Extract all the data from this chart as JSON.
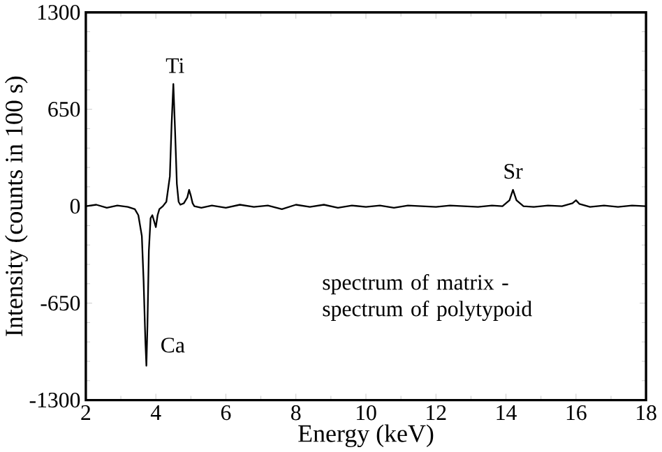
{
  "chart_data": {
    "type": "line",
    "xlabel": "Energy (keV)",
    "ylabel": "Intensity (counts in 100 s)",
    "x": [
      2.0,
      2.3,
      2.6,
      2.9,
      3.2,
      3.4,
      3.5,
      3.6,
      3.65,
      3.7,
      3.73,
      3.76,
      3.8,
      3.85,
      3.9,
      3.95,
      4.0,
      4.05,
      4.1,
      4.2,
      4.3,
      4.4,
      4.45,
      4.5,
      4.55,
      4.6,
      4.65,
      4.7,
      4.8,
      4.9,
      4.95,
      5.0,
      5.05,
      5.1,
      5.3,
      5.6,
      6.0,
      6.4,
      6.8,
      7.2,
      7.6,
      8.0,
      8.4,
      8.8,
      9.2,
      9.6,
      10.0,
      10.4,
      10.8,
      11.2,
      11.6,
      12.0,
      12.4,
      12.8,
      13.2,
      13.6,
      13.9,
      14.1,
      14.2,
      14.3,
      14.5,
      14.8,
      15.2,
      15.6,
      15.9,
      16.0,
      16.1,
      16.4,
      16.8,
      17.2,
      17.6,
      18.0
    ],
    "values": [
      0,
      10,
      -10,
      5,
      -5,
      -20,
      -60,
      -200,
      -500,
      -900,
      -1070,
      -800,
      -300,
      -80,
      -60,
      -100,
      -140,
      -60,
      -20,
      0,
      30,
      200,
      550,
      820,
      500,
      150,
      30,
      10,
      20,
      60,
      110,
      70,
      20,
      0,
      -10,
      5,
      -10,
      10,
      -5,
      5,
      -20,
      10,
      -5,
      10,
      -10,
      5,
      -5,
      5,
      -10,
      5,
      0,
      -5,
      5,
      0,
      -5,
      5,
      0,
      40,
      110,
      40,
      0,
      -5,
      5,
      0,
      20,
      40,
      15,
      -5,
      5,
      -5,
      5,
      0
    ],
    "color": "#000000",
    "xlim": [
      2,
      18
    ],
    "ylim": [
      -1300,
      1300
    ],
    "xticks": [
      2,
      4,
      6,
      8,
      10,
      12,
      14,
      16,
      18
    ],
    "yticks": [
      -1300,
      -650,
      0,
      650,
      1300
    ],
    "annotations": [
      {
        "text": "Ti",
        "x": 4.55,
        "y": 820
      },
      {
        "text": "Ca",
        "x": 3.73,
        "y": -1070
      },
      {
        "text": "Sr",
        "x": 14.2,
        "y": 110
      },
      "spectrum of matrix - spectrum of polytypoid"
    ],
    "marker": "none",
    "line_style": "solid",
    "grid": false
  }
}
